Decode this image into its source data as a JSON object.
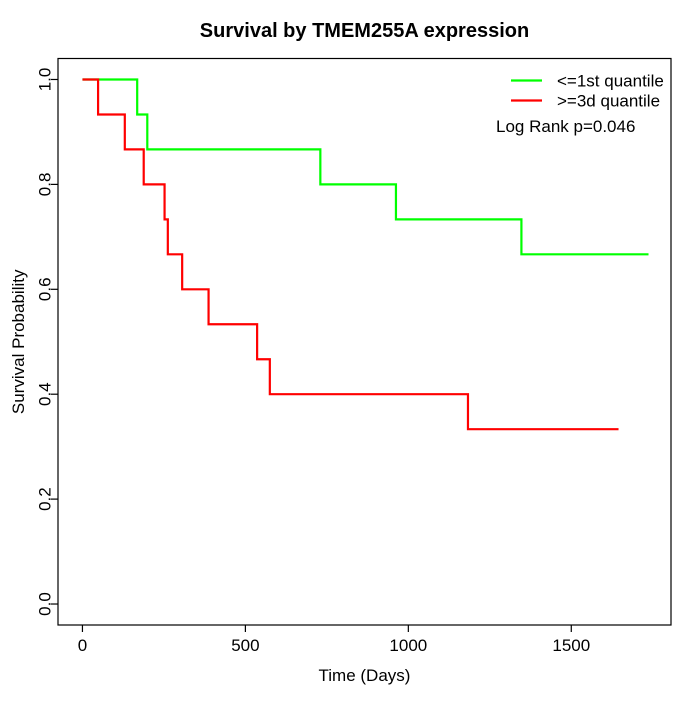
{
  "title": "Survival by TMEM255A expression",
  "axes": {
    "x": {
      "label": "Time (Days)"
    },
    "y": {
      "label": "Survival Probability"
    }
  },
  "legend": {
    "items": [
      {
        "label": "<=1st quantile",
        "color": "#00FF00"
      },
      {
        "label": ">=3d quantile",
        "color": "#FF0000"
      }
    ],
    "annotation": "Log Rank p=0.046"
  },
  "chart_data": {
    "type": "line",
    "subtype": "kaplan-meier-step",
    "title": "Survival by TMEM255A expression",
    "xlabel": "Time (Days)",
    "ylabel": "Survival Probability",
    "xlim": [
      -75,
      1806
    ],
    "ylim": [
      -0.04,
      1.04
    ],
    "x_ticks": [
      0,
      500,
      1000,
      1500
    ],
    "y_ticks": [
      0.0,
      0.2,
      0.4,
      0.6,
      0.8,
      1.0
    ],
    "grid": false,
    "legend_position": "top-right",
    "annotation": "Log Rank p=0.046",
    "series": [
      {
        "name": "<=1st quantile",
        "color": "#00FF00",
        "start_time": 0,
        "start_survival": 1.0,
        "event_times": [
          168,
          199,
          730,
          962,
          1347
        ],
        "survival_after_event": [
          0.9333,
          0.8667,
          0.8,
          0.7333,
          0.6667
        ],
        "end_time": 1737
      },
      {
        "name": ">=3d quantile",
        "color": "#FF0000",
        "start_time": 0,
        "start_survival": 1.0,
        "event_times": [
          48,
          130,
          188,
          252,
          262,
          306,
          387,
          536,
          575,
          1183
        ],
        "survival_after_event": [
          0.9333,
          0.8667,
          0.8,
          0.7333,
          0.6667,
          0.6,
          0.5333,
          0.4667,
          0.4,
          0.3333
        ],
        "end_time": 1645
      }
    ]
  }
}
